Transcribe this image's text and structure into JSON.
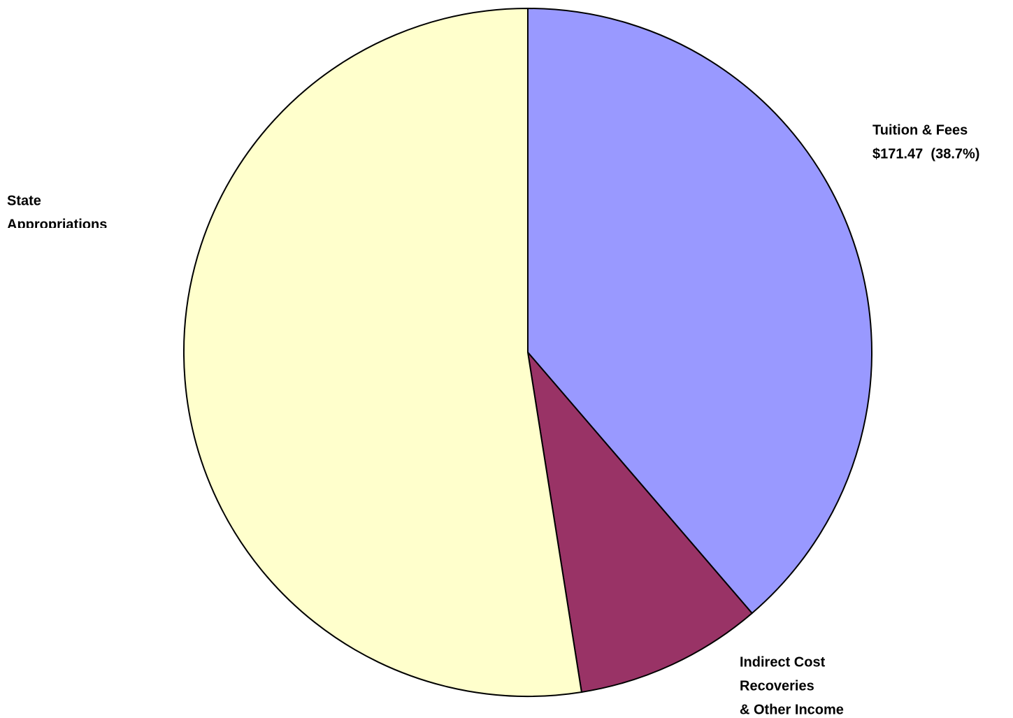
{
  "chart_data": {
    "type": "pie",
    "categories": [
      [
        "Tuition & Fees"
      ],
      [
        "Indirect Cost",
        "Recoveries",
        "& Other Income"
      ],
      [
        "State",
        "Appropriations"
      ]
    ],
    "values": [
      171.47,
      39.0,
      232.6
    ],
    "value_labels": [
      "$171.47  (38.7%)",
      null,
      null
    ],
    "colors": [
      "#9999ff",
      "#993366",
      "#ffffcc"
    ]
  }
}
